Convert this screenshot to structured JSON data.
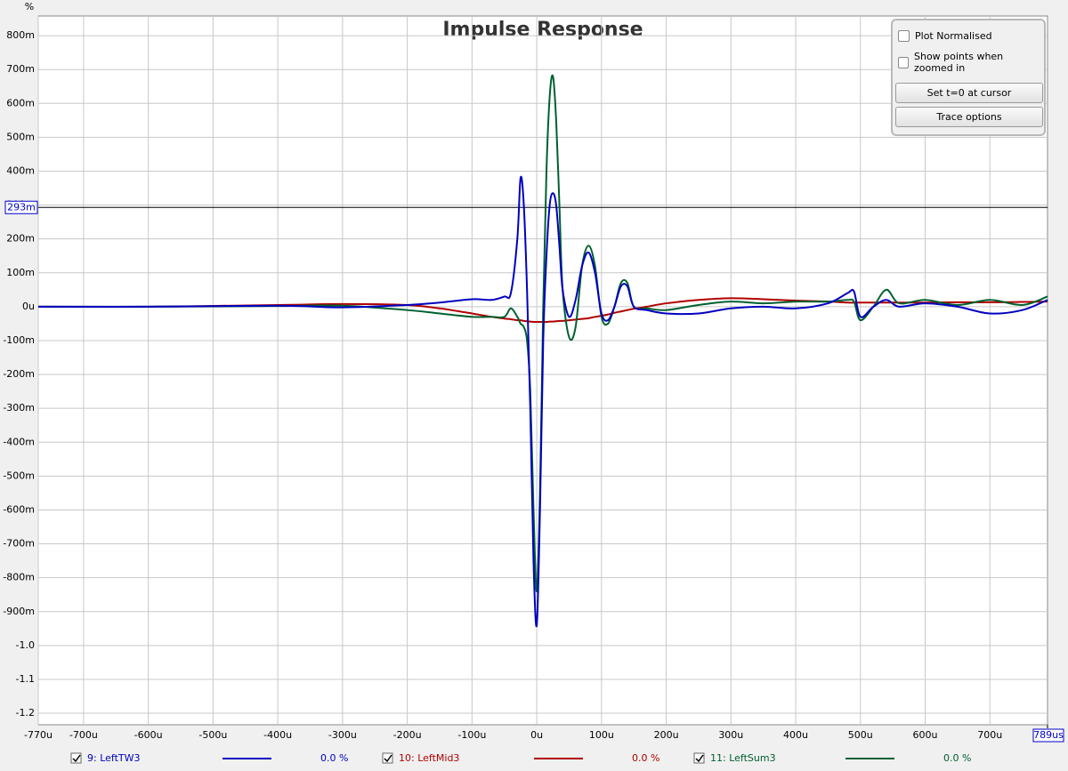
{
  "chart_data": {
    "type": "line",
    "title": "Impulse Response",
    "y_unit": "%",
    "x": [
      -770,
      -600,
      -400,
      -300,
      -200,
      -150,
      -100,
      -70,
      -50,
      -40,
      -30,
      -25,
      -20,
      -15,
      -10,
      -5,
      0,
      5,
      10,
      15,
      20,
      25,
      30,
      35,
      40,
      50,
      60,
      70,
      80,
      90,
      100,
      110,
      120,
      130,
      140,
      150,
      170,
      200,
      250,
      300,
      350,
      400,
      450,
      480,
      490,
      500,
      520,
      540,
      560,
      600,
      650,
      700,
      750,
      789
    ],
    "series": [
      {
        "name": "9: LeftTW3",
        "color": "#0000c0",
        "readout": "0.0 %",
        "values": [
          0,
          0,
          0.003,
          -0.002,
          0.005,
          0.012,
          0.022,
          0.02,
          0.03,
          0.04,
          0.2,
          0.38,
          0.3,
          0.05,
          -0.3,
          -0.75,
          -0.94,
          -0.6,
          -0.1,
          0.15,
          0.3,
          0.335,
          0.3,
          0.18,
          0.05,
          -0.03,
          0.02,
          0.12,
          0.16,
          0.1,
          -0.02,
          -0.04,
          0,
          0.06,
          0.06,
          0,
          -0.01,
          -0.02,
          -0.02,
          -0.005,
          0,
          -0.005,
          0.01,
          0.04,
          0.045,
          -0.03,
          0,
          0.02,
          0,
          0.01,
          0,
          -0.02,
          -0.01,
          0.02
        ]
      },
      {
        "name": "10: LeftMid3",
        "color": "#b00000",
        "readout": "0.0 %",
        "values": [
          0,
          0,
          0.005,
          0.008,
          0.005,
          -0.005,
          -0.02,
          -0.03,
          -0.035,
          -0.037,
          -0.04,
          -0.04,
          -0.042,
          -0.043,
          -0.044,
          -0.045,
          -0.045,
          -0.045,
          -0.045,
          -0.045,
          -0.044,
          -0.044,
          -0.043,
          -0.042,
          -0.042,
          -0.04,
          -0.038,
          -0.036,
          -0.034,
          -0.03,
          -0.027,
          -0.023,
          -0.018,
          -0.014,
          -0.01,
          -0.006,
          0,
          0.01,
          0.02,
          0.025,
          0.022,
          0.018,
          0.015,
          0.012,
          0.012,
          0.012,
          0.012,
          0.012,
          0.012,
          0.012,
          0.013,
          0.013,
          0.014,
          0.015
        ]
      },
      {
        "name": "11: LeftSum3",
        "color": "#006030",
        "readout": "0.0 %",
        "values": [
          0,
          0,
          0.002,
          0.003,
          -0.01,
          -0.02,
          -0.03,
          -0.03,
          -0.03,
          -0.005,
          -0.03,
          -0.05,
          -0.06,
          -0.1,
          -0.25,
          -0.6,
          -0.84,
          -0.55,
          0,
          0.4,
          0.62,
          0.68,
          0.55,
          0.3,
          0.05,
          -0.09,
          -0.06,
          0.12,
          0.18,
          0.12,
          -0.03,
          -0.05,
          0,
          0.07,
          0.07,
          0,
          -0.005,
          -0.01,
          0.005,
          0.015,
          0.01,
          0.015,
          0.015,
          0.02,
          0.015,
          -0.04,
          0,
          0.05,
          0.01,
          0.02,
          0.005,
          0.02,
          0.005,
          0.03
        ]
      }
    ],
    "xlim": [
      -770,
      789
    ],
    "ylim": [
      -1.234,
      0.858
    ],
    "xticks": [
      {
        "value": -770,
        "label": "-770u"
      },
      {
        "value": -700,
        "label": "-700u"
      },
      {
        "value": -600,
        "label": "-600u"
      },
      {
        "value": -500,
        "label": "-500u"
      },
      {
        "value": -400,
        "label": "-400u"
      },
      {
        "value": -300,
        "label": "-300u"
      },
      {
        "value": -200,
        "label": "-200u"
      },
      {
        "value": -100,
        "label": "-100u"
      },
      {
        "value": 0,
        "label": "0u"
      },
      {
        "value": 100,
        "label": "100u"
      },
      {
        "value": 200,
        "label": "200u"
      },
      {
        "value": 300,
        "label": "300u"
      },
      {
        "value": 400,
        "label": "400u"
      },
      {
        "value": 500,
        "label": "500u"
      },
      {
        "value": 600,
        "label": "600u"
      },
      {
        "value": 700,
        "label": "700u"
      }
    ],
    "yticks": [
      {
        "value": 0.8,
        "label": "800m"
      },
      {
        "value": 0.7,
        "label": "700m"
      },
      {
        "value": 0.6,
        "label": "600m"
      },
      {
        "value": 0.5,
        "label": "500m"
      },
      {
        "value": 0.4,
        "label": "400m"
      },
      {
        "value": 0.3,
        "label": "300m"
      },
      {
        "value": 0.2,
        "label": "200m"
      },
      {
        "value": 0.1,
        "label": "100m"
      },
      {
        "value": 0,
        "label": "0u"
      },
      {
        "value": -0.1,
        "label": "-100m"
      },
      {
        "value": -0.2,
        "label": "-200m"
      },
      {
        "value": -0.3,
        "label": "-300m"
      },
      {
        "value": -0.4,
        "label": "-400m"
      },
      {
        "value": -0.5,
        "label": "-500m"
      },
      {
        "value": -0.6,
        "label": "-600m"
      },
      {
        "value": -0.7,
        "label": "-700m"
      },
      {
        "value": -0.8,
        "label": "-800m"
      },
      {
        "value": -0.9,
        "label": "-900m"
      },
      {
        "value": -1.0,
        "label": "-1.0"
      },
      {
        "value": -1.1,
        "label": "-1.1"
      },
      {
        "value": -1.2,
        "label": "-1.2"
      }
    ],
    "grid": true,
    "cursor": {
      "y": {
        "value": 0.293,
        "label": "293m"
      },
      "x": {
        "value": 789,
        "label": "789us"
      }
    },
    "controls": {
      "checkboxes": [
        "Plot Normalised",
        "Show points when zoomed in"
      ],
      "buttons": [
        "Set t=0 at cursor",
        "Trace options"
      ]
    }
  }
}
